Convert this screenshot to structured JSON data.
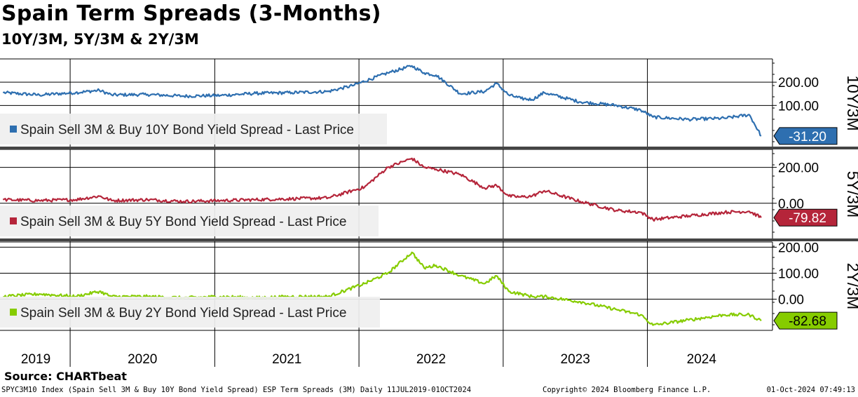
{
  "title": "Spain Term Spreads (3-Months)",
  "subtitle": "10Y/3M, 5Y/3M & 2Y/3M",
  "source": "Source: CHARTbeat",
  "footer": {
    "description": "SPYC3M10 Index (Spain Sell 3M & Buy 10Y Bond Yield Spread) ESP Term Spreads (3M)  Daily 11JUL2019-01OCT2024",
    "copyright": "Copyright© 2024 Bloomberg Finance L.P.",
    "timestamp": "01-Oct-2024 07:49:13"
  },
  "chart_data": [
    {
      "type": "line",
      "panel_label": "10Y/3M",
      "legend": "Spain Sell 3M & Buy 10Y Bond Yield Spread - Last Price",
      "last_value": "-31.20",
      "color": "#2e6fb0",
      "ylim": [
        -80,
        300
      ],
      "y_ticks": [
        200,
        100
      ],
      "y_tick_labels": [
        "200.00",
        "100.00"
      ],
      "x": [
        "2019-07",
        "2019-10",
        "2020-01",
        "2020-03",
        "2020-04",
        "2020-07",
        "2020-10",
        "2021-01",
        "2021-04",
        "2021-07",
        "2021-10",
        "2021-12",
        "2022-03",
        "2022-05",
        "2022-06",
        "2022-07",
        "2022-09",
        "2022-11",
        "2022-12",
        "2023-01",
        "2023-02",
        "2023-03",
        "2023-04",
        "2023-07",
        "2023-10",
        "2023-12",
        "2024-01",
        "2024-04",
        "2024-07",
        "2024-09",
        "2024-10"
      ],
      "values": [
        155,
        145,
        155,
        165,
        145,
        147,
        140,
        143,
        152,
        155,
        160,
        185,
        240,
        270,
        240,
        230,
        150,
        160,
        195,
        145,
        130,
        125,
        155,
        115,
        100,
        80,
        50,
        40,
        45,
        60,
        -31.2
      ]
    },
    {
      "type": "line",
      "panel_label": "5Y/3M",
      "legend": "Spain Sell 3M & Buy 5Y Bond Yield Spread - Last Price",
      "last_value": "-79.82",
      "color": "#b5253a",
      "ylim": [
        -200,
        300
      ],
      "y_ticks": [
        200,
        0
      ],
      "y_tick_labels": [
        "200.00",
        "0.00"
      ],
      "x": [
        "2019-07",
        "2019-10",
        "2020-01",
        "2020-03",
        "2020-04",
        "2020-07",
        "2020-10",
        "2021-01",
        "2021-04",
        "2021-07",
        "2021-10",
        "2022-01",
        "2022-03",
        "2022-05",
        "2022-06",
        "2022-07",
        "2022-09",
        "2022-11",
        "2022-12",
        "2023-01",
        "2023-02",
        "2023-03",
        "2023-04",
        "2023-07",
        "2023-10",
        "2023-12",
        "2024-01",
        "2024-04",
        "2024-07",
        "2024-09",
        "2024-10"
      ],
      "values": [
        20,
        15,
        20,
        40,
        15,
        20,
        10,
        15,
        20,
        25,
        30,
        90,
        200,
        250,
        200,
        190,
        160,
        85,
        100,
        40,
        35,
        40,
        70,
        10,
        -40,
        -50,
        -90,
        -70,
        -50,
        -45,
        -79.82
      ]
    },
    {
      "type": "line",
      "panel_label": "2Y/3M",
      "legend": "Spain Sell 3M & Buy 2Y Bond Yield Spread - Last Price",
      "last_value": "-82.68",
      "color": "#86cc00",
      "ylim": [
        -120,
        220
      ],
      "y_ticks": [
        200,
        100,
        0
      ],
      "y_tick_labels": [
        "200.00",
        "100.00",
        "0.00"
      ],
      "x": [
        "2019-07",
        "2019-10",
        "2020-01",
        "2020-03",
        "2020-04",
        "2020-07",
        "2020-10",
        "2021-01",
        "2021-04",
        "2021-07",
        "2021-10",
        "2022-01",
        "2022-03",
        "2022-05",
        "2022-06",
        "2022-07",
        "2022-09",
        "2022-11",
        "2022-12",
        "2023-01",
        "2023-02",
        "2023-03",
        "2023-04",
        "2023-07",
        "2023-10",
        "2023-12",
        "2024-01",
        "2024-04",
        "2024-07",
        "2024-09",
        "2024-10"
      ],
      "values": [
        10,
        20,
        10,
        30,
        10,
        10,
        5,
        10,
        5,
        10,
        10,
        60,
        100,
        180,
        120,
        130,
        90,
        60,
        90,
        30,
        20,
        10,
        10,
        -10,
        -40,
        -60,
        -100,
        -80,
        -60,
        -60,
        -82.68
      ]
    }
  ],
  "x_axis": {
    "year_labels": [
      "2019",
      "2020",
      "2021",
      "2022",
      "2023",
      "2024"
    ]
  }
}
